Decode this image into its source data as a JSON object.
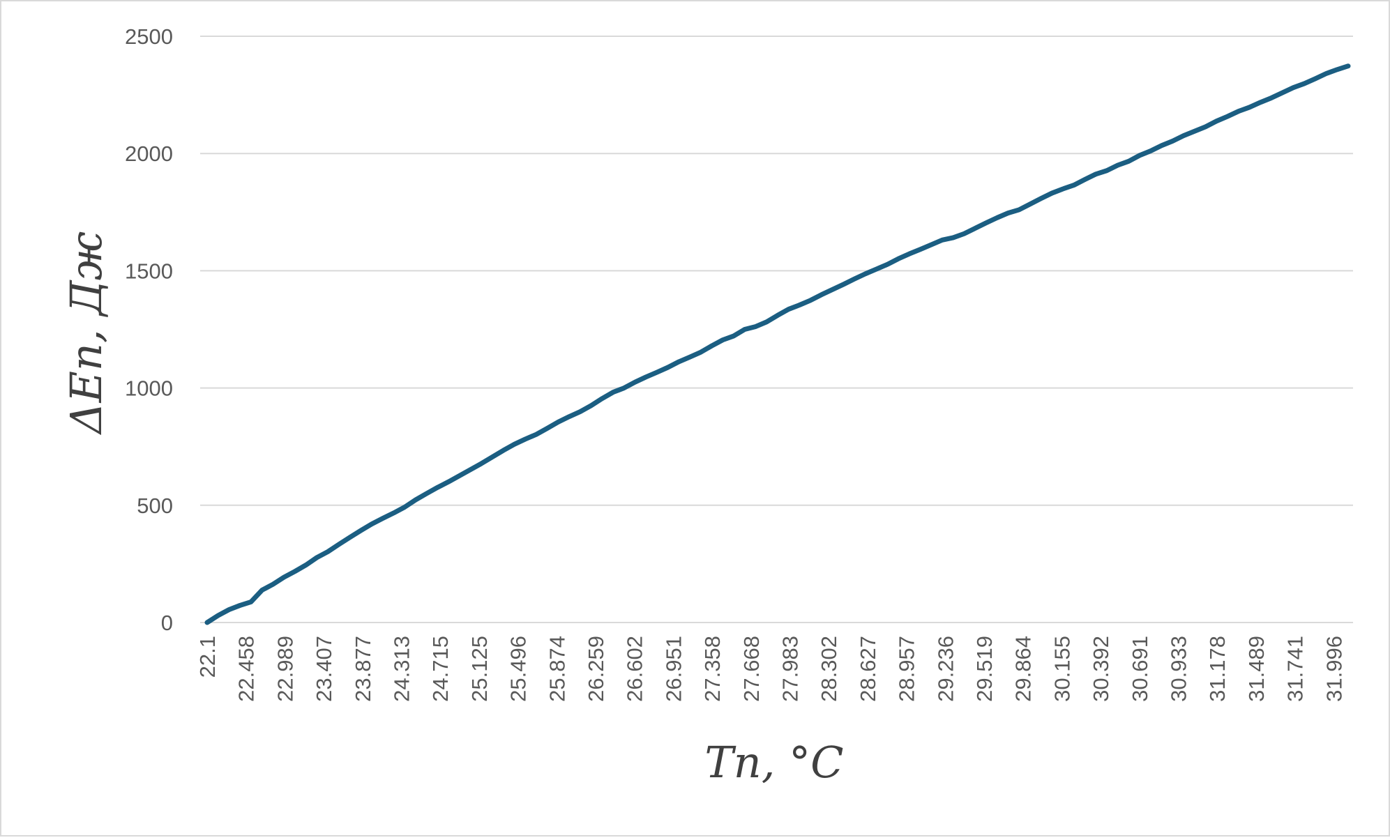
{
  "chart_data": {
    "type": "line",
    "xlabel": "Tn, °C",
    "ylabel": "ΔEn, Дж",
    "ylim": [
      0,
      2500
    ],
    "y_ticks": [
      0,
      500,
      1000,
      1500,
      2000,
      2500
    ],
    "x_ticks": [
      "22.1",
      "22.458",
      "22.989",
      "23.407",
      "23.877",
      "24.313",
      "24.715",
      "25.125",
      "25.496",
      "25.874",
      "26.259",
      "26.602",
      "26.951",
      "27.358",
      "27.668",
      "27.983",
      "28.302",
      "28.627",
      "28.957",
      "29.236",
      "29.519",
      "29.864",
      "30.155",
      "30.392",
      "30.691",
      "30.933",
      "31.178",
      "31.489",
      "31.741",
      "31.996"
    ],
    "grid": true,
    "legend": "none",
    "series": [
      {
        "color": "#1b5e82",
        "values": [
          0,
          30,
          55,
          73,
          88,
          138,
          163,
          193,
          218,
          245,
          277,
          302,
          333,
          363,
          392,
          420,
          444,
          467,
          492,
          523,
          550,
          576,
          600,
          626,
          652,
          678,
          706,
          734,
          760,
          782,
          802,
          828,
          855,
          878,
          899,
          925,
          955,
          982,
          1000,
          1025,
          1047,
          1067,
          1088,
          1112,
          1132,
          1153,
          1180,
          1205,
          1222,
          1250,
          1262,
          1282,
          1310,
          1336,
          1354,
          1374,
          1398,
          1420,
          1442,
          1465,
          1487,
          1507,
          1527,
          1551,
          1572,
          1591,
          1611,
          1631,
          1641,
          1658,
          1681,
          1704,
          1726,
          1746,
          1760,
          1784,
          1808,
          1831,
          1849,
          1865,
          1889,
          1912,
          1927,
          1950,
          1967,
          1992,
          2011,
          2034,
          2053,
          2076,
          2095,
          2114,
          2138,
          2158,
          2180,
          2197,
          2218,
          2237,
          2259,
          2281,
          2298,
          2319,
          2341,
          2358,
          2373
        ]
      }
    ]
  }
}
